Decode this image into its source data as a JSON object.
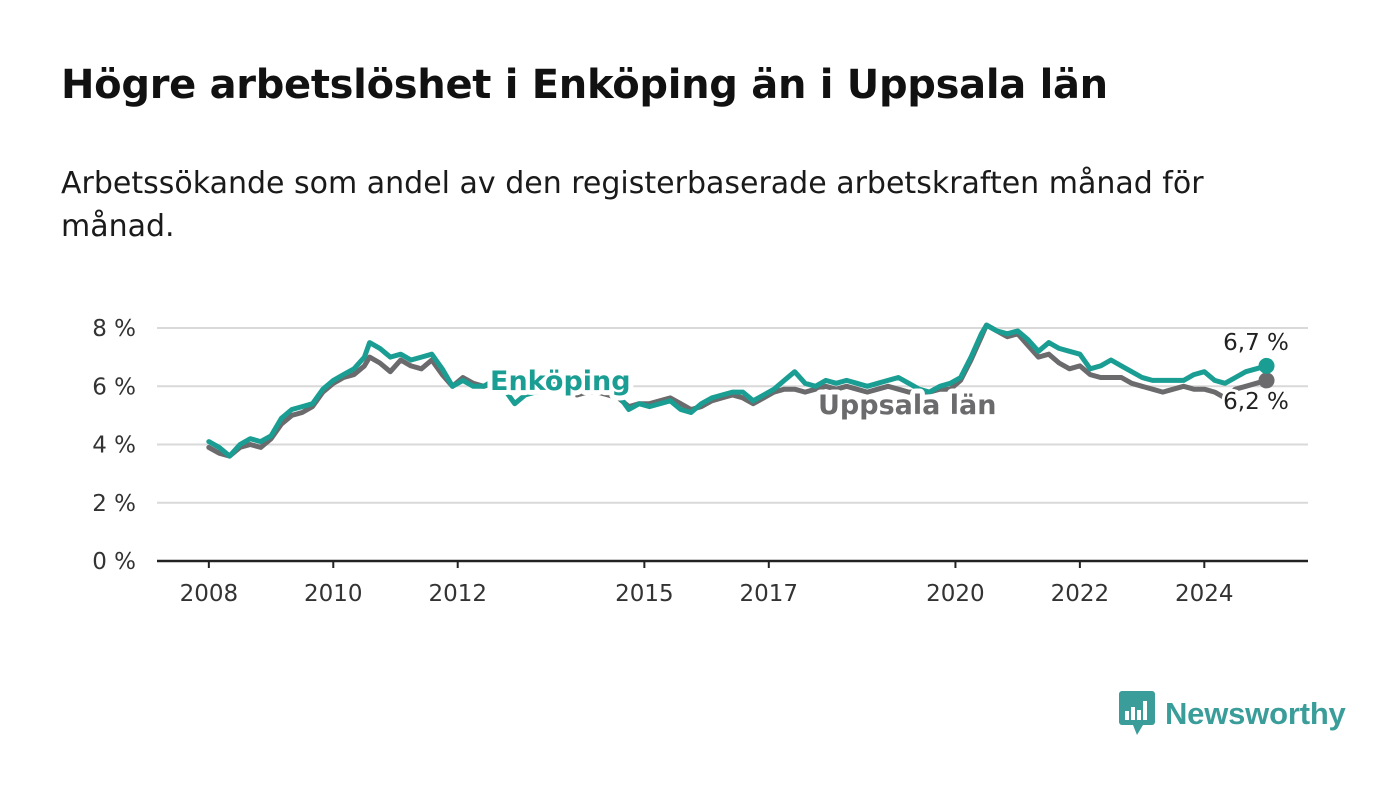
{
  "title": "Högre arbetslöshet i Enköping än i Uppsala län",
  "subtitle": "Arbetssökande som andel av den registerbaserade arbetskraften månad för månad.",
  "brand": {
    "name": "Newsworthy",
    "color": "#3a9d9a",
    "icon": "bar-chart-speech-bubble-icon"
  },
  "chart_data": {
    "type": "line",
    "title": "",
    "xlabel": "",
    "ylabel": "",
    "x_ticks": [
      "2008",
      "2010",
      "2012",
      "2015",
      "2017",
      "2020",
      "2022",
      "2024"
    ],
    "y_ticks": [
      "0 %",
      "2 %",
      "4 %",
      "6 %",
      "8 %"
    ],
    "ylim": [
      0,
      8
    ],
    "xlim": [
      "2007-03",
      "2025-09"
    ],
    "grid": true,
    "legend": "inline labels",
    "end_labels": {
      "Enköping": "6,7 %",
      "Uppsala län": "6,2 %"
    },
    "series": [
      {
        "name": "Enköping",
        "color": "#1a9e93",
        "points": [
          [
            "2008-01",
            4.1
          ],
          [
            "2008-03",
            3.9
          ],
          [
            "2008-05",
            3.6
          ],
          [
            "2008-07",
            4.0
          ],
          [
            "2008-09",
            4.2
          ],
          [
            "2008-11",
            4.1
          ],
          [
            "2009-01",
            4.3
          ],
          [
            "2009-03",
            4.9
          ],
          [
            "2009-05",
            5.2
          ],
          [
            "2009-07",
            5.3
          ],
          [
            "2009-09",
            5.4
          ],
          [
            "2009-11",
            5.9
          ],
          [
            "2010-01",
            6.2
          ],
          [
            "2010-03",
            6.4
          ],
          [
            "2010-05",
            6.6
          ],
          [
            "2010-07",
            7.0
          ],
          [
            "2010-08",
            7.5
          ],
          [
            "2010-10",
            7.3
          ],
          [
            "2010-12",
            7.0
          ],
          [
            "2011-02",
            7.1
          ],
          [
            "2011-04",
            6.9
          ],
          [
            "2011-06",
            7.0
          ],
          [
            "2011-08",
            7.1
          ],
          [
            "2011-10",
            6.6
          ],
          [
            "2011-12",
            6.0
          ],
          [
            "2012-02",
            6.2
          ],
          [
            "2012-04",
            6.0
          ],
          [
            "2012-06",
            6.0
          ],
          [
            "2012-08",
            6.2
          ],
          [
            "2012-10",
            5.9
          ],
          [
            "2012-12",
            5.4
          ],
          [
            "2013-02",
            5.7
          ],
          [
            "2013-04",
            5.8
          ],
          [
            "2013-06",
            5.9
          ],
          [
            "2013-08",
            6.1
          ],
          [
            "2013-10",
            6.0
          ],
          [
            "2013-12",
            5.9
          ],
          [
            "2014-02",
            6.0
          ],
          [
            "2014-04",
            5.9
          ],
          [
            "2014-06",
            5.8
          ],
          [
            "2014-08",
            5.7
          ],
          [
            "2014-10",
            5.2
          ],
          [
            "2014-12",
            5.4
          ],
          [
            "2015-02",
            5.3
          ],
          [
            "2015-04",
            5.4
          ],
          [
            "2015-06",
            5.5
          ],
          [
            "2015-08",
            5.2
          ],
          [
            "2015-10",
            5.1
          ],
          [
            "2015-12",
            5.4
          ],
          [
            "2016-02",
            5.6
          ],
          [
            "2016-04",
            5.7
          ],
          [
            "2016-06",
            5.8
          ],
          [
            "2016-08",
            5.8
          ],
          [
            "2016-10",
            5.5
          ],
          [
            "2016-12",
            5.7
          ],
          [
            "2017-02",
            5.9
          ],
          [
            "2017-04",
            6.2
          ],
          [
            "2017-06",
            6.5
          ],
          [
            "2017-08",
            6.1
          ],
          [
            "2017-10",
            6.0
          ],
          [
            "2017-12",
            6.2
          ],
          [
            "2018-02",
            6.1
          ],
          [
            "2018-04",
            6.2
          ],
          [
            "2018-06",
            6.1
          ],
          [
            "2018-08",
            6.0
          ],
          [
            "2018-10",
            6.1
          ],
          [
            "2018-12",
            6.2
          ],
          [
            "2019-02",
            6.3
          ],
          [
            "2019-04",
            6.1
          ],
          [
            "2019-06",
            5.9
          ],
          [
            "2019-08",
            5.8
          ],
          [
            "2019-10",
            6.0
          ],
          [
            "2019-12",
            6.1
          ],
          [
            "2020-02",
            6.3
          ],
          [
            "2020-04",
            7.0
          ],
          [
            "2020-06",
            7.8
          ],
          [
            "2020-07",
            8.1
          ],
          [
            "2020-09",
            7.9
          ],
          [
            "2020-11",
            7.8
          ],
          [
            "2021-01",
            7.9
          ],
          [
            "2021-03",
            7.6
          ],
          [
            "2021-05",
            7.2
          ],
          [
            "2021-07",
            7.5
          ],
          [
            "2021-09",
            7.3
          ],
          [
            "2021-11",
            7.2
          ],
          [
            "2022-01",
            7.1
          ],
          [
            "2022-03",
            6.6
          ],
          [
            "2022-05",
            6.7
          ],
          [
            "2022-07",
            6.9
          ],
          [
            "2022-09",
            6.7
          ],
          [
            "2022-11",
            6.5
          ],
          [
            "2023-01",
            6.3
          ],
          [
            "2023-03",
            6.2
          ],
          [
            "2023-05",
            6.2
          ],
          [
            "2023-07",
            6.2
          ],
          [
            "2023-09",
            6.2
          ],
          [
            "2023-11",
            6.4
          ],
          [
            "2024-01",
            6.5
          ],
          [
            "2024-03",
            6.2
          ],
          [
            "2024-05",
            6.1
          ],
          [
            "2024-07",
            6.3
          ],
          [
            "2024-09",
            6.5
          ],
          [
            "2024-11",
            6.6
          ],
          [
            "2025-01",
            6.7
          ]
        ]
      },
      {
        "name": "Uppsala län",
        "color": "#6b6a6c",
        "points": [
          [
            "2008-01",
            3.9
          ],
          [
            "2008-03",
            3.7
          ],
          [
            "2008-05",
            3.6
          ],
          [
            "2008-07",
            3.9
          ],
          [
            "2008-09",
            4.0
          ],
          [
            "2008-11",
            3.9
          ],
          [
            "2009-01",
            4.2
          ],
          [
            "2009-03",
            4.7
          ],
          [
            "2009-05",
            5.0
          ],
          [
            "2009-07",
            5.1
          ],
          [
            "2009-09",
            5.3
          ],
          [
            "2009-11",
            5.8
          ],
          [
            "2010-01",
            6.1
          ],
          [
            "2010-03",
            6.3
          ],
          [
            "2010-05",
            6.4
          ],
          [
            "2010-07",
            6.7
          ],
          [
            "2010-08",
            7.0
          ],
          [
            "2010-10",
            6.8
          ],
          [
            "2010-12",
            6.5
          ],
          [
            "2011-02",
            6.9
          ],
          [
            "2011-04",
            6.7
          ],
          [
            "2011-06",
            6.6
          ],
          [
            "2011-08",
            6.9
          ],
          [
            "2011-10",
            6.4
          ],
          [
            "2011-12",
            6.0
          ],
          [
            "2012-02",
            6.3
          ],
          [
            "2012-04",
            6.1
          ],
          [
            "2012-06",
            6.0
          ],
          [
            "2012-08",
            6.1
          ],
          [
            "2012-10",
            6.0
          ],
          [
            "2012-12",
            5.8
          ],
          [
            "2013-02",
            6.1
          ],
          [
            "2013-04",
            6.0
          ],
          [
            "2013-06",
            6.0
          ],
          [
            "2013-08",
            5.9
          ],
          [
            "2013-10",
            5.8
          ],
          [
            "2013-12",
            5.7
          ],
          [
            "2014-02",
            5.8
          ],
          [
            "2014-04",
            5.8
          ],
          [
            "2014-06",
            5.7
          ],
          [
            "2014-08",
            5.6
          ],
          [
            "2014-10",
            5.3
          ],
          [
            "2014-12",
            5.4
          ],
          [
            "2015-02",
            5.4
          ],
          [
            "2015-04",
            5.5
          ],
          [
            "2015-06",
            5.6
          ],
          [
            "2015-08",
            5.4
          ],
          [
            "2015-10",
            5.2
          ],
          [
            "2015-12",
            5.3
          ],
          [
            "2016-02",
            5.5
          ],
          [
            "2016-04",
            5.6
          ],
          [
            "2016-06",
            5.7
          ],
          [
            "2016-08",
            5.6
          ],
          [
            "2016-10",
            5.4
          ],
          [
            "2016-12",
            5.6
          ],
          [
            "2017-02",
            5.8
          ],
          [
            "2017-04",
            5.9
          ],
          [
            "2017-06",
            5.9
          ],
          [
            "2017-08",
            5.8
          ],
          [
            "2017-10",
            5.9
          ],
          [
            "2017-12",
            6.0
          ],
          [
            "2018-02",
            5.9
          ],
          [
            "2018-04",
            6.0
          ],
          [
            "2018-06",
            5.9
          ],
          [
            "2018-08",
            5.8
          ],
          [
            "2018-10",
            5.9
          ],
          [
            "2018-12",
            6.0
          ],
          [
            "2019-02",
            5.9
          ],
          [
            "2019-04",
            5.8
          ],
          [
            "2019-06",
            5.8
          ],
          [
            "2019-08",
            5.8
          ],
          [
            "2019-10",
            5.9
          ],
          [
            "2019-12",
            5.9
          ],
          [
            "2020-02",
            6.2
          ],
          [
            "2020-04",
            6.9
          ],
          [
            "2020-06",
            7.7
          ],
          [
            "2020-07",
            8.1
          ],
          [
            "2020-09",
            7.9
          ],
          [
            "2020-11",
            7.7
          ],
          [
            "2021-01",
            7.8
          ],
          [
            "2021-03",
            7.4
          ],
          [
            "2021-05",
            7.0
          ],
          [
            "2021-07",
            7.1
          ],
          [
            "2021-09",
            6.8
          ],
          [
            "2021-11",
            6.6
          ],
          [
            "2022-01",
            6.7
          ],
          [
            "2022-03",
            6.4
          ],
          [
            "2022-05",
            6.3
          ],
          [
            "2022-07",
            6.3
          ],
          [
            "2022-09",
            6.3
          ],
          [
            "2022-11",
            6.1
          ],
          [
            "2023-01",
            6.0
          ],
          [
            "2023-03",
            5.9
          ],
          [
            "2023-05",
            5.8
          ],
          [
            "2023-07",
            5.9
          ],
          [
            "2023-09",
            6.0
          ],
          [
            "2023-11",
            5.9
          ],
          [
            "2024-01",
            5.9
          ],
          [
            "2024-03",
            5.8
          ],
          [
            "2024-05",
            5.6
          ],
          [
            "2024-07",
            5.9
          ],
          [
            "2024-09",
            6.0
          ],
          [
            "2024-11",
            6.1
          ],
          [
            "2025-01",
            6.2
          ]
        ]
      }
    ]
  }
}
